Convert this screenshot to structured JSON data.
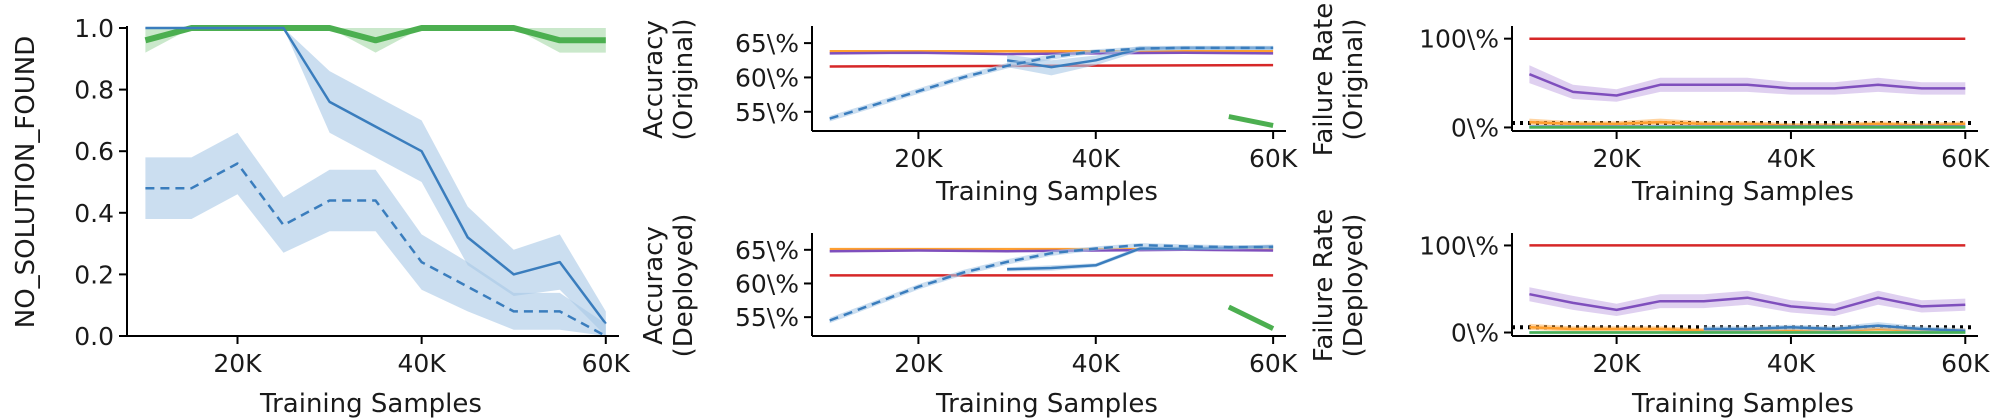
{
  "colors": {
    "blue": "#3a7dbd",
    "blue_band": "#a9c8e6",
    "green": "#4caf50",
    "green_band": "#a7d8a8",
    "red": "#d62728",
    "orange": "#ff9f2f",
    "purple": "#7f4fbd",
    "purple_band": "#c9b1e6",
    "teal": "#17becf",
    "reference": "#000000"
  },
  "chart_data": [
    {
      "id": "no-solution",
      "type": "line",
      "xlabel": "Training Samples",
      "ylabel": "NO_SOLUTION_FOUND",
      "xlim": [
        8000,
        61000
      ],
      "ylim": [
        0,
        1
      ],
      "xticks": [
        {
          "v": 20000,
          "t": "20K"
        },
        {
          "v": 40000,
          "t": "40K"
        },
        {
          "v": 60000,
          "t": "60K"
        }
      ],
      "yticks": [
        {
          "v": 0,
          "t": "0.0"
        },
        {
          "v": 0.2,
          "t": "0.2"
        },
        {
          "v": 0.4,
          "t": "0.4"
        },
        {
          "v": 0.6,
          "t": "0.6"
        },
        {
          "v": 0.8,
          "t": "0.8"
        },
        {
          "v": 1.0,
          "t": "1.0"
        }
      ],
      "reference_lines": [],
      "series": [
        {
          "color": "green",
          "band": "green_band",
          "width": 6,
          "dash": "",
          "x": [
            10000,
            15000,
            20000,
            25000,
            30000,
            35000,
            40000,
            45000,
            50000,
            55000,
            60000
          ],
          "y": [
            0.96,
            1.0,
            1.0,
            1.0,
            1.0,
            0.96,
            1.0,
            1.0,
            1.0,
            0.96,
            0.96
          ],
          "lo": [
            0.92,
            1.0,
            1.0,
            1.0,
            1.0,
            0.92,
            1.0,
            1.0,
            1.0,
            0.92,
            0.92
          ],
          "hi": [
            1.0,
            1.0,
            1.0,
            1.0,
            1.0,
            1.0,
            1.0,
            1.0,
            1.0,
            1.0,
            1.0
          ]
        },
        {
          "color": "blue",
          "band": "blue_band",
          "width": 2.5,
          "dash": "",
          "x": [
            10000,
            15000,
            20000,
            25000,
            30000,
            35000,
            40000,
            45000,
            50000,
            55000,
            60000
          ],
          "y": [
            1.0,
            1.0,
            1.0,
            1.0,
            0.76,
            0.68,
            0.6,
            0.32,
            0.2,
            0.24,
            0.04
          ],
          "lo": [
            1.0,
            1.0,
            1.0,
            1.0,
            0.66,
            0.58,
            0.5,
            0.23,
            0.13,
            0.15,
            0.0
          ],
          "hi": [
            1.0,
            1.0,
            1.0,
            1.0,
            0.86,
            0.78,
            0.7,
            0.42,
            0.28,
            0.33,
            0.08
          ]
        },
        {
          "color": "blue",
          "band": "blue_band",
          "width": 2.5,
          "dash": "9 6",
          "x": [
            10000,
            15000,
            20000,
            25000,
            30000,
            35000,
            40000,
            45000,
            50000,
            55000,
            60000
          ],
          "y": [
            0.48,
            0.48,
            0.56,
            0.36,
            0.44,
            0.44,
            0.24,
            0.16,
            0.08,
            0.08,
            0.0
          ],
          "lo": [
            0.38,
            0.38,
            0.46,
            0.27,
            0.34,
            0.34,
            0.15,
            0.08,
            0.02,
            0.02,
            0.0
          ],
          "hi": [
            0.58,
            0.58,
            0.66,
            0.45,
            0.54,
            0.54,
            0.33,
            0.24,
            0.14,
            0.14,
            0.04
          ]
        }
      ]
    },
    {
      "id": "accuracy-original",
      "type": "line",
      "xlabel": "Training Samples",
      "ylabel": [
        "Accuracy",
        "(Original)"
      ],
      "xlim": [
        8000,
        61000
      ],
      "ylim": [
        0.522,
        0.672
      ],
      "xticks": [
        {
          "v": 20000,
          "t": "20K"
        },
        {
          "v": 40000,
          "t": "40K"
        },
        {
          "v": 60000,
          "t": "60K"
        }
      ],
      "yticks": [
        {
          "v": 0.55,
          "t": "55\\%"
        },
        {
          "v": 0.6,
          "t": "60\\%"
        },
        {
          "v": 0.65,
          "t": "65\\%"
        }
      ],
      "reference_lines": [],
      "series": [
        {
          "color": "orange",
          "width": 2.5,
          "dash": "",
          "x": [
            10000,
            60000
          ],
          "y": [
            0.638,
            0.638
          ]
        },
        {
          "color": "red",
          "width": 2.5,
          "dash": "",
          "x": [
            10000,
            60000
          ],
          "y": [
            0.616,
            0.618
          ]
        },
        {
          "color": "purple",
          "width": 2.5,
          "dash": "",
          "x": [
            10000,
            20000,
            30000,
            40000,
            50000,
            60000
          ],
          "y": [
            0.635,
            0.636,
            0.634,
            0.635,
            0.636,
            0.635
          ]
        },
        {
          "color": "blue",
          "band": "blue_band",
          "width": 2.5,
          "dash": "",
          "x": [
            30000,
            35000,
            40000,
            45000,
            50000,
            55000,
            60000
          ],
          "y": [
            0.625,
            0.615,
            0.625,
            0.642,
            0.643,
            0.643,
            0.643
          ],
          "lo": [
            0.615,
            0.603,
            0.618,
            0.638,
            0.64,
            0.64,
            0.64
          ],
          "hi": [
            0.633,
            0.625,
            0.632,
            0.646,
            0.646,
            0.646,
            0.646
          ]
        },
        {
          "color": "blue",
          "band": "blue_band",
          "width": 2.5,
          "dash": "9 6",
          "x": [
            10000,
            15000,
            20000,
            25000,
            30000,
            35000,
            40000,
            45000,
            50000,
            55000,
            60000
          ],
          "y": [
            0.54,
            0.56,
            0.58,
            0.6,
            0.617,
            0.63,
            0.638,
            0.642,
            0.643,
            0.643,
            0.643
          ],
          "lo": [
            0.536,
            0.556,
            0.576,
            0.596,
            0.613,
            0.626,
            0.635,
            0.639,
            0.64,
            0.64,
            0.64
          ],
          "hi": [
            0.544,
            0.564,
            0.584,
            0.604,
            0.621,
            0.634,
            0.641,
            0.645,
            0.646,
            0.646,
            0.646
          ]
        },
        {
          "color": "green",
          "width": 5,
          "dash": "",
          "x": [
            55000,
            60000
          ],
          "y": [
            0.543,
            0.53
          ]
        }
      ]
    },
    {
      "id": "failure-original",
      "type": "line",
      "xlabel": "Training Samples",
      "ylabel": [
        "Failure Rate",
        "(Original)"
      ],
      "xlim": [
        8000,
        61000
      ],
      "ylim": [
        -0.04,
        1.12
      ],
      "xticks": [
        {
          "v": 20000,
          "t": "20K"
        },
        {
          "v": 40000,
          "t": "40K"
        },
        {
          "v": 60000,
          "t": "60K"
        }
      ],
      "yticks": [
        {
          "v": 0,
          "t": "0\\%"
        },
        {
          "v": 1.0,
          "t": "100\\%"
        }
      ],
      "reference_lines": [
        {
          "y": 0.05,
          "color": "reference",
          "dash": "3 5",
          "width": 4
        }
      ],
      "series": [
        {
          "color": "red",
          "width": 2.5,
          "dash": "",
          "x": [
            10000,
            60000
          ],
          "y": [
            1.0,
            1.0
          ]
        },
        {
          "color": "purple",
          "band": "purple_band",
          "width": 2.5,
          "dash": "",
          "x": [
            10000,
            15000,
            20000,
            25000,
            30000,
            35000,
            40000,
            45000,
            50000,
            55000,
            60000
          ],
          "y": [
            0.6,
            0.4,
            0.36,
            0.48,
            0.48,
            0.48,
            0.44,
            0.44,
            0.48,
            0.44,
            0.44
          ],
          "lo": [
            0.5,
            0.32,
            0.29,
            0.4,
            0.4,
            0.4,
            0.37,
            0.37,
            0.4,
            0.37,
            0.37
          ],
          "hi": [
            0.7,
            0.48,
            0.43,
            0.56,
            0.56,
            0.56,
            0.51,
            0.51,
            0.56,
            0.51,
            0.51
          ]
        },
        {
          "color": "orange",
          "band": "orange",
          "width": 2.5,
          "dash": "",
          "x": [
            10000,
            15000,
            20000,
            25000,
            30000,
            35000,
            40000,
            45000,
            50000,
            55000,
            60000
          ],
          "y": [
            0.06,
            0.04,
            0.04,
            0.06,
            0.04,
            0.04,
            0.02,
            0.02,
            0.04,
            0.02,
            0.04
          ],
          "lo": [
            0.03,
            0.01,
            0.01,
            0.03,
            0.01,
            0.01,
            0.0,
            0.0,
            0.01,
            0.0,
            0.01
          ],
          "hi": [
            0.1,
            0.07,
            0.07,
            0.1,
            0.07,
            0.07,
            0.05,
            0.05,
            0.07,
            0.05,
            0.07
          ]
        },
        {
          "color": "blue",
          "width": 2.5,
          "dash": "",
          "x": [
            10000,
            60000
          ],
          "y": [
            0.01,
            0.01
          ]
        },
        {
          "color": "teal",
          "width": 2.5,
          "dash": "",
          "x": [
            10000,
            60000
          ],
          "y": [
            0.0,
            0.0
          ]
        },
        {
          "color": "green",
          "width": 2.5,
          "dash": "",
          "x": [
            10000,
            60000
          ],
          "y": [
            0.0,
            0.0
          ]
        }
      ]
    },
    {
      "id": "accuracy-deployed",
      "type": "line",
      "xlabel": "Training Samples",
      "ylabel": [
        "Accuracy",
        "(Deployed)"
      ],
      "xlim": [
        8000,
        61000
      ],
      "ylim": [
        0.522,
        0.672
      ],
      "xticks": [
        {
          "v": 20000,
          "t": "20K"
        },
        {
          "v": 40000,
          "t": "40K"
        },
        {
          "v": 60000,
          "t": "60K"
        }
      ],
      "yticks": [
        {
          "v": 0.55,
          "t": "55\\%"
        },
        {
          "v": 0.6,
          "t": "60\\%"
        },
        {
          "v": 0.65,
          "t": "65\\%"
        }
      ],
      "reference_lines": [],
      "series": [
        {
          "color": "orange",
          "width": 2.5,
          "dash": "",
          "x": [
            10000,
            60000
          ],
          "y": [
            0.651,
            0.651
          ]
        },
        {
          "color": "red",
          "width": 2.5,
          "dash": "",
          "x": [
            10000,
            60000
          ],
          "y": [
            0.612,
            0.612
          ]
        },
        {
          "color": "purple",
          "width": 2.5,
          "dash": "",
          "x": [
            10000,
            20000,
            30000,
            40000,
            50000,
            60000
          ],
          "y": [
            0.648,
            0.649,
            0.648,
            0.649,
            0.65,
            0.649
          ]
        },
        {
          "color": "blue",
          "band": "blue_band",
          "width": 2.5,
          "dash": "",
          "x": [
            30000,
            35000,
            40000,
            45000,
            50000,
            55000,
            60000
          ],
          "y": [
            0.621,
            0.623,
            0.627,
            0.652,
            0.652,
            0.653,
            0.655
          ],
          "lo": [
            0.618,
            0.619,
            0.624,
            0.649,
            0.649,
            0.65,
            0.652
          ],
          "hi": [
            0.624,
            0.627,
            0.63,
            0.655,
            0.655,
            0.656,
            0.658
          ]
        },
        {
          "color": "blue",
          "band": "blue_band",
          "width": 2.5,
          "dash": "9 6",
          "x": [
            10000,
            15000,
            20000,
            25000,
            30000,
            35000,
            40000,
            45000,
            50000,
            55000,
            60000
          ],
          "y": [
            0.545,
            0.57,
            0.595,
            0.616,
            0.632,
            0.645,
            0.652,
            0.657,
            0.655,
            0.654,
            0.654
          ],
          "lo": [
            0.541,
            0.566,
            0.591,
            0.612,
            0.628,
            0.641,
            0.649,
            0.654,
            0.652,
            0.651,
            0.651
          ],
          "hi": [
            0.549,
            0.574,
            0.599,
            0.62,
            0.636,
            0.649,
            0.655,
            0.66,
            0.658,
            0.657,
            0.657
          ]
        },
        {
          "color": "green",
          "width": 5,
          "dash": "",
          "x": [
            55000,
            60000
          ],
          "y": [
            0.565,
            0.533
          ]
        }
      ]
    },
    {
      "id": "failure-deployed",
      "type": "line",
      "xlabel": "Training Samples",
      "ylabel": [
        "Failure Rate",
        "(Deployed)"
      ],
      "xlim": [
        8000,
        61000
      ],
      "ylim": [
        -0.04,
        1.12
      ],
      "xticks": [
        {
          "v": 20000,
          "t": "20K"
        },
        {
          "v": 40000,
          "t": "40K"
        },
        {
          "v": 60000,
          "t": "60K"
        }
      ],
      "yticks": [
        {
          "v": 0,
          "t": "0\\%"
        },
        {
          "v": 1.0,
          "t": "100\\%"
        }
      ],
      "reference_lines": [
        {
          "y": 0.06,
          "color": "reference",
          "dash": "3 5",
          "width": 4
        }
      ],
      "series": [
        {
          "color": "red",
          "width": 2.5,
          "dash": "",
          "x": [
            10000,
            60000
          ],
          "y": [
            1.0,
            1.0
          ]
        },
        {
          "color": "purple",
          "band": "purple_band",
          "width": 2.5,
          "dash": "",
          "x": [
            10000,
            15000,
            20000,
            25000,
            30000,
            35000,
            40000,
            45000,
            50000,
            55000,
            60000
          ],
          "y": [
            0.44,
            0.34,
            0.26,
            0.36,
            0.36,
            0.4,
            0.3,
            0.26,
            0.4,
            0.3,
            0.32
          ],
          "lo": [
            0.36,
            0.26,
            0.19,
            0.28,
            0.28,
            0.32,
            0.23,
            0.19,
            0.32,
            0.23,
            0.25
          ],
          "hi": [
            0.52,
            0.42,
            0.33,
            0.44,
            0.44,
            0.48,
            0.37,
            0.33,
            0.48,
            0.37,
            0.39
          ]
        },
        {
          "color": "orange",
          "band": "orange",
          "width": 2.5,
          "dash": "",
          "x": [
            10000,
            15000,
            20000,
            25000,
            30000,
            35000,
            40000,
            45000,
            50000,
            55000,
            60000
          ],
          "y": [
            0.06,
            0.04,
            0.04,
            0.04,
            0.02,
            0.02,
            0.02,
            0.02,
            0.04,
            0.02,
            0.02
          ],
          "lo": [
            0.03,
            0.01,
            0.01,
            0.01,
            0.0,
            0.0,
            0.0,
            0.0,
            0.01,
            0.0,
            0.0
          ],
          "hi": [
            0.1,
            0.07,
            0.07,
            0.07,
            0.05,
            0.05,
            0.05,
            0.05,
            0.07,
            0.05,
            0.05
          ]
        },
        {
          "color": "blue",
          "band": "blue_band",
          "width": 2.5,
          "dash": "",
          "x": [
            30000,
            35000,
            40000,
            45000,
            50000,
            55000,
            60000
          ],
          "y": [
            0.04,
            0.04,
            0.06,
            0.04,
            0.08,
            0.04,
            0.02
          ],
          "lo": [
            0.01,
            0.01,
            0.03,
            0.01,
            0.04,
            0.01,
            0.0
          ],
          "hi": [
            0.07,
            0.07,
            0.09,
            0.07,
            0.12,
            0.07,
            0.05
          ]
        },
        {
          "color": "teal",
          "width": 2.5,
          "dash": "",
          "x": [
            10000,
            60000
          ],
          "y": [
            0.0,
            0.0
          ]
        },
        {
          "color": "green",
          "width": 2.5,
          "dash": "",
          "x": [
            10000,
            60000
          ],
          "y": [
            0.0,
            0.0
          ]
        }
      ]
    }
  ]
}
